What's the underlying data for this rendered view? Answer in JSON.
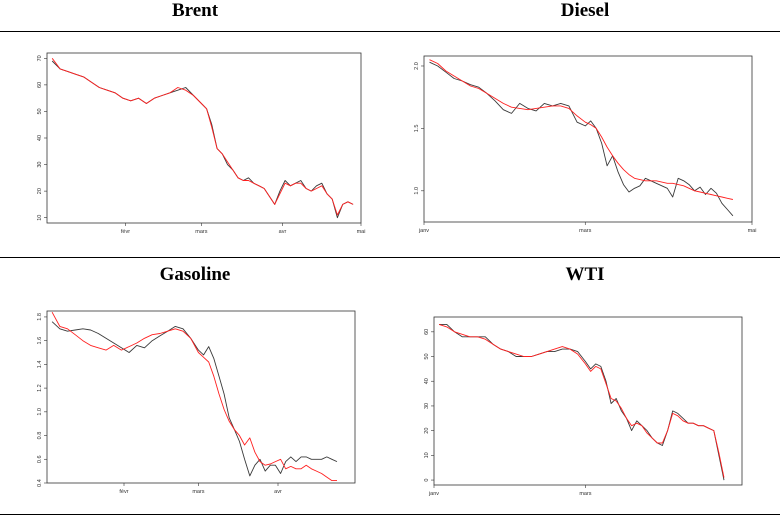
{
  "colors": {
    "black_series": "#3a3a3a",
    "red_series": "#ff2020",
    "frame": "#333333"
  },
  "chart_data": [
    {
      "type": "line",
      "title": "Brent",
      "xlabel": "",
      "ylabel": "",
      "xlim": [
        0,
        120
      ],
      "ylim": [
        8,
        72
      ],
      "xticks": [
        {
          "v": 30,
          "label": "févr"
        },
        {
          "v": 59,
          "label": "mars"
        },
        {
          "v": 90,
          "label": "avr"
        },
        {
          "v": 120,
          "label": "mai"
        }
      ],
      "yticks": [
        {
          "v": 10,
          "label": "10"
        },
        {
          "v": 20,
          "label": "20"
        },
        {
          "v": 30,
          "label": "30"
        },
        {
          "v": 40,
          "label": "40"
        },
        {
          "v": 50,
          "label": "50"
        },
        {
          "v": 60,
          "label": "60"
        },
        {
          "v": 70,
          "label": "70"
        }
      ],
      "series": [
        {
          "color": "black",
          "x": [
            2,
            5,
            8,
            11,
            14,
            17,
            20,
            23,
            26,
            29,
            32,
            35,
            38,
            41,
            44,
            47,
            50,
            53,
            56,
            59,
            61,
            63,
            65,
            67,
            69,
            71,
            73,
            75,
            77,
            79,
            81,
            83,
            85,
            87,
            89,
            91,
            93,
            95,
            97,
            99,
            101,
            103,
            105,
            107,
            109,
            111,
            113,
            115,
            117
          ],
          "values": [
            69,
            66,
            65,
            64,
            63,
            61,
            59,
            58,
            57,
            55,
            54,
            55,
            53,
            55,
            56,
            57,
            58,
            59,
            56,
            53,
            51,
            45,
            36,
            34,
            30,
            28,
            25,
            24,
            25,
            23,
            22,
            21,
            18,
            15,
            20,
            24,
            22,
            23,
            24,
            21,
            20,
            22,
            23,
            19,
            17,
            10,
            15,
            16,
            15
          ]
        },
        {
          "color": "red",
          "x": [
            2,
            5,
            8,
            11,
            14,
            17,
            20,
            23,
            26,
            29,
            32,
            35,
            38,
            41,
            44,
            47,
            50,
            53,
            56,
            59,
            61,
            63,
            65,
            67,
            69,
            71,
            73,
            75,
            77,
            79,
            81,
            83,
            85,
            87,
            89,
            91,
            93,
            95,
            97,
            99,
            101,
            103,
            105,
            107,
            109,
            111,
            113,
            115,
            117
          ],
          "values": [
            70,
            66,
            65,
            64,
            63,
            61,
            59,
            58,
            57,
            55,
            54,
            55,
            53,
            55,
            56,
            57,
            59,
            58,
            56,
            53,
            51,
            44,
            36,
            34,
            31,
            28,
            25,
            24,
            24,
            23,
            22,
            21,
            18,
            15,
            19,
            23,
            22,
            23,
            23,
            21,
            20,
            21,
            22,
            19,
            17,
            11,
            15,
            16,
            15
          ]
        }
      ]
    },
    {
      "type": "line",
      "title": "Diesel",
      "xlabel": "",
      "ylabel": "",
      "xlim": [
        0,
        120
      ],
      "ylim": [
        0.75,
        2.08
      ],
      "xticks": [
        {
          "v": 0,
          "label": "janv"
        },
        {
          "v": 59,
          "label": "mars"
        },
        {
          "v": 120,
          "label": "mai"
        }
      ],
      "yticks": [
        {
          "v": 1.0,
          "label": "1.0"
        },
        {
          "v": 1.5,
          "label": "1.5"
        },
        {
          "v": 2.0,
          "label": "2.0"
        }
      ],
      "series": [
        {
          "color": "black",
          "x": [
            2,
            5,
            8,
            11,
            14,
            17,
            20,
            23,
            26,
            29,
            32,
            35,
            38,
            41,
            44,
            47,
            50,
            53,
            56,
            59,
            61,
            63,
            65,
            67,
            69,
            71,
            73,
            75,
            77,
            79,
            81,
            83,
            85,
            87,
            89,
            91,
            93,
            95,
            97,
            99,
            101,
            103,
            105,
            107,
            109,
            111,
            113
          ],
          "values": [
            2.03,
            2.0,
            1.95,
            1.9,
            1.88,
            1.85,
            1.83,
            1.78,
            1.72,
            1.65,
            1.62,
            1.7,
            1.66,
            1.64,
            1.7,
            1.68,
            1.7,
            1.68,
            1.55,
            1.52,
            1.56,
            1.5,
            1.38,
            1.2,
            1.28,
            1.15,
            1.05,
            0.99,
            1.02,
            1.04,
            1.1,
            1.08,
            1.06,
            1.04,
            1.02,
            0.95,
            1.1,
            1.08,
            1.05,
            1.0,
            1.03,
            0.97,
            1.02,
            0.98,
            0.9,
            0.85,
            0.8
          ]
        },
        {
          "color": "red",
          "x": [
            2,
            5,
            8,
            11,
            14,
            17,
            20,
            23,
            26,
            29,
            32,
            35,
            38,
            41,
            44,
            47,
            50,
            53,
            56,
            59,
            61,
            63,
            65,
            67,
            69,
            71,
            73,
            75,
            77,
            79,
            81,
            83,
            85,
            87,
            89,
            91,
            93,
            95,
            97,
            99,
            101,
            103,
            105,
            107,
            109,
            111,
            113
          ],
          "values": [
            2.05,
            2.02,
            1.96,
            1.92,
            1.88,
            1.84,
            1.82,
            1.78,
            1.74,
            1.7,
            1.67,
            1.66,
            1.65,
            1.66,
            1.67,
            1.68,
            1.68,
            1.66,
            1.6,
            1.55,
            1.53,
            1.5,
            1.43,
            1.35,
            1.28,
            1.22,
            1.17,
            1.13,
            1.1,
            1.09,
            1.08,
            1.08,
            1.08,
            1.07,
            1.06,
            1.06,
            1.05,
            1.04,
            1.02,
            1.0,
            0.99,
            0.98,
            0.97,
            0.96,
            0.95,
            0.94,
            0.93
          ]
        }
      ]
    },
    {
      "type": "line",
      "title": "Gasoline",
      "xlabel": "",
      "ylabel": "",
      "xlim": [
        0,
        120
      ],
      "ylim": [
        0.4,
        1.85
      ],
      "xticks": [
        {
          "v": 30,
          "label": "févr"
        },
        {
          "v": 59,
          "label": "mars"
        },
        {
          "v": 90,
          "label": "avr"
        }
      ],
      "yticks": [
        {
          "v": 0.4,
          "label": "0.4"
        },
        {
          "v": 0.6,
          "label": "0.6"
        },
        {
          "v": 0.8,
          "label": "0.8"
        },
        {
          "v": 1.0,
          "label": "1.0"
        },
        {
          "v": 1.2,
          "label": "1.2"
        },
        {
          "v": 1.4,
          "label": "1.4"
        },
        {
          "v": 1.6,
          "label": "1.6"
        },
        {
          "v": 1.8,
          "label": "1.8"
        }
      ],
      "series": [
        {
          "color": "black",
          "x": [
            2,
            5,
            8,
            11,
            14,
            17,
            20,
            23,
            26,
            29,
            32,
            35,
            38,
            41,
            44,
            47,
            50,
            53,
            56,
            59,
            61,
            63,
            65,
            67,
            69,
            71,
            73,
            75,
            77,
            79,
            81,
            83,
            85,
            87,
            89,
            91,
            93,
            95,
            97,
            99,
            101,
            103,
            105,
            107,
            109,
            111,
            113
          ],
          "values": [
            1.76,
            1.7,
            1.68,
            1.69,
            1.7,
            1.69,
            1.66,
            1.62,
            1.58,
            1.54,
            1.5,
            1.56,
            1.54,
            1.6,
            1.64,
            1.68,
            1.72,
            1.7,
            1.62,
            1.52,
            1.48,
            1.55,
            1.45,
            1.3,
            1.15,
            0.95,
            0.85,
            0.75,
            0.6,
            0.46,
            0.55,
            0.6,
            0.5,
            0.55,
            0.55,
            0.48,
            0.58,
            0.62,
            0.58,
            0.62,
            0.62,
            0.6,
            0.6,
            0.6,
            0.62,
            0.6,
            0.58
          ]
        },
        {
          "color": "red",
          "x": [
            2,
            5,
            8,
            11,
            14,
            17,
            20,
            23,
            26,
            29,
            32,
            35,
            38,
            41,
            44,
            47,
            50,
            53,
            56,
            59,
            61,
            63,
            65,
            67,
            69,
            71,
            73,
            75,
            77,
            79,
            81,
            83,
            85,
            87,
            89,
            91,
            93,
            95,
            97,
            99,
            101,
            103,
            105,
            107,
            109,
            111,
            113
          ],
          "values": [
            1.84,
            1.72,
            1.7,
            1.65,
            1.6,
            1.56,
            1.54,
            1.52,
            1.56,
            1.52,
            1.55,
            1.58,
            1.62,
            1.65,
            1.66,
            1.68,
            1.7,
            1.68,
            1.62,
            1.5,
            1.46,
            1.42,
            1.3,
            1.15,
            1.02,
            0.92,
            0.85,
            0.8,
            0.72,
            0.78,
            0.66,
            0.58,
            0.55,
            0.56,
            0.58,
            0.6,
            0.52,
            0.54,
            0.52,
            0.52,
            0.55,
            0.52,
            0.5,
            0.48,
            0.45,
            0.42,
            0.42
          ]
        }
      ]
    },
    {
      "type": "line",
      "title": "WTI",
      "xlabel": "",
      "ylabel": "",
      "xlim": [
        0,
        120
      ],
      "ylim": [
        -2,
        66
      ],
      "xticks": [
        {
          "v": 0,
          "label": "janv"
        },
        {
          "v": 59,
          "label": "mars"
        }
      ],
      "yticks": [
        {
          "v": 0,
          "label": "0"
        },
        {
          "v": 10,
          "label": "10"
        },
        {
          "v": 20,
          "label": "20"
        },
        {
          "v": 30,
          "label": "30"
        },
        {
          "v": 40,
          "label": "40"
        },
        {
          "v": 50,
          "label": "50"
        },
        {
          "v": 60,
          "label": "60"
        }
      ],
      "series": [
        {
          "color": "black",
          "x": [
            2,
            5,
            8,
            11,
            14,
            17,
            20,
            23,
            26,
            29,
            32,
            35,
            38,
            41,
            44,
            47,
            50,
            53,
            56,
            59,
            61,
            63,
            65,
            67,
            69,
            71,
            73,
            75,
            77,
            79,
            81,
            83,
            85,
            87,
            89,
            91,
            93,
            95,
            97,
            99,
            101,
            103,
            105,
            107,
            109,
            111,
            113
          ],
          "values": [
            63,
            63,
            60,
            58,
            58,
            58,
            58,
            55,
            53,
            52,
            50,
            50,
            50,
            51,
            52,
            52,
            53,
            53,
            52,
            48,
            45,
            47,
            46,
            40,
            31,
            33,
            28,
            25,
            20,
            24,
            22,
            20,
            17,
            15,
            14,
            20,
            28,
            27,
            25,
            23,
            23,
            22,
            22,
            21,
            20,
            10,
            0
          ]
        },
        {
          "color": "red",
          "x": [
            2,
            5,
            8,
            11,
            14,
            17,
            20,
            23,
            26,
            29,
            32,
            35,
            38,
            41,
            44,
            47,
            50,
            53,
            56,
            59,
            61,
            63,
            65,
            67,
            69,
            71,
            73,
            75,
            77,
            79,
            81,
            83,
            85,
            87,
            89,
            91,
            93,
            95,
            97,
            99,
            101,
            103,
            105,
            107,
            109,
            111,
            113
          ],
          "values": [
            63,
            62,
            60,
            59,
            58,
            58,
            57,
            55,
            53,
            52,
            51,
            50,
            50,
            51,
            52,
            53,
            54,
            53,
            51,
            47,
            44,
            46,
            45,
            39,
            33,
            32,
            29,
            25,
            22,
            23,
            22,
            19,
            17,
            15,
            15,
            20,
            27,
            26,
            24,
            23,
            23,
            22,
            22,
            21,
            20,
            11,
            1
          ]
        }
      ]
    }
  ]
}
